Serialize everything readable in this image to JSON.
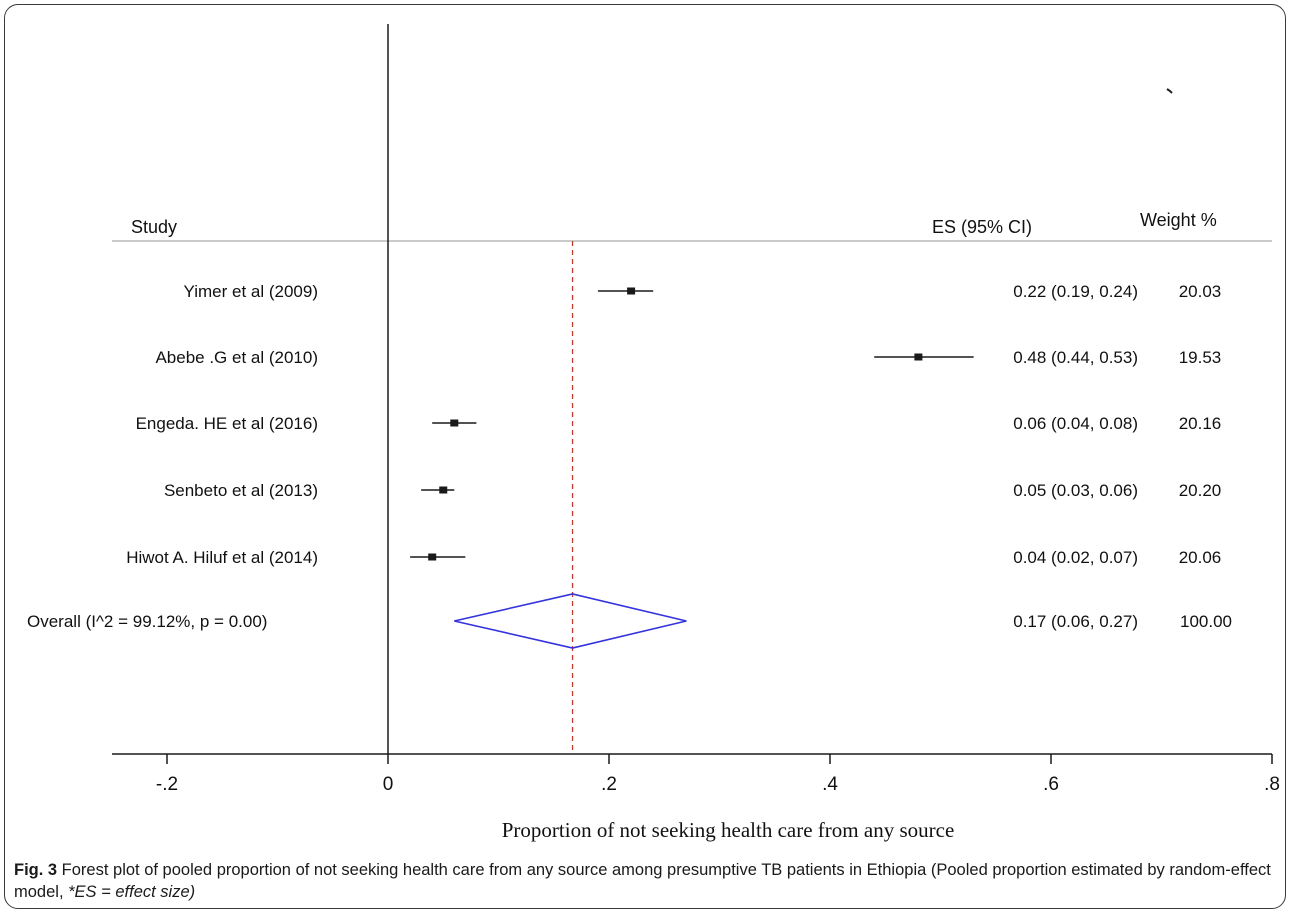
{
  "figure": {
    "caption_label": "Fig. 3",
    "caption_text": " Forest plot of pooled proportion of not seeking health care from any source among presumptive TB patients in Ethiopia (Pooled proportion estimated by random-effect model, ",
    "caption_note": "*ES = effect size)"
  },
  "chart_data": {
    "type": "forest",
    "header": {
      "study": "Study",
      "es": "ES (95% CI)",
      "weight": "Weight %"
    },
    "xlabel": "Proportion of not seeking health care from any source",
    "xlim": [
      -0.25,
      0.8
    ],
    "xticks": [
      -0.2,
      0,
      0.2,
      0.4,
      0.6,
      0.8
    ],
    "xtick_labels": [
      "-.2",
      "0",
      ".2",
      ".4",
      ".6",
      ".8"
    ],
    "null_line": 0,
    "pooled_line": 0.167,
    "studies": [
      {
        "label": "Yimer et al (2009)",
        "es": 0.22,
        "ci": [
          0.19,
          0.24
        ],
        "es_text": "0.22 (0.19, 0.24)",
        "weight": 20.03,
        "weight_text": "20.03"
      },
      {
        "label": "Abebe .G et al (2010)",
        "es": 0.48,
        "ci": [
          0.44,
          0.53
        ],
        "es_text": "0.48 (0.44, 0.53)",
        "weight": 19.53,
        "weight_text": "19.53"
      },
      {
        "label": "Engeda. HE et al (2016)",
        "es": 0.06,
        "ci": [
          0.04,
          0.08
        ],
        "es_text": "0.06 (0.04, 0.08)",
        "weight": 20.16,
        "weight_text": "20.16"
      },
      {
        "label": "Senbeto et al (2013)",
        "es": 0.05,
        "ci": [
          0.03,
          0.06
        ],
        "es_text": "0.05 (0.03, 0.06)",
        "weight": 20.2,
        "weight_text": "20.20"
      },
      {
        "label": "Hiwot A. Hiluf et al (2014)",
        "es": 0.04,
        "ci": [
          0.02,
          0.07
        ],
        "es_text": "0.04 (0.02, 0.07)",
        "weight": 20.06,
        "weight_text": "20.06"
      }
    ],
    "overall": {
      "label": "Overall (I^2 = 99.12%, p = 0.00)",
      "es": 0.167,
      "ci": [
        0.06,
        0.27
      ],
      "es_text": "0.17 (0.06, 0.27)",
      "weight": 100,
      "weight_text": "100.00"
    },
    "colors": {
      "axis": "#1a1a1a",
      "pooled_line": "#c0392b",
      "diamond": "#3333dd",
      "header_rule": "#b8b8b8"
    }
  }
}
